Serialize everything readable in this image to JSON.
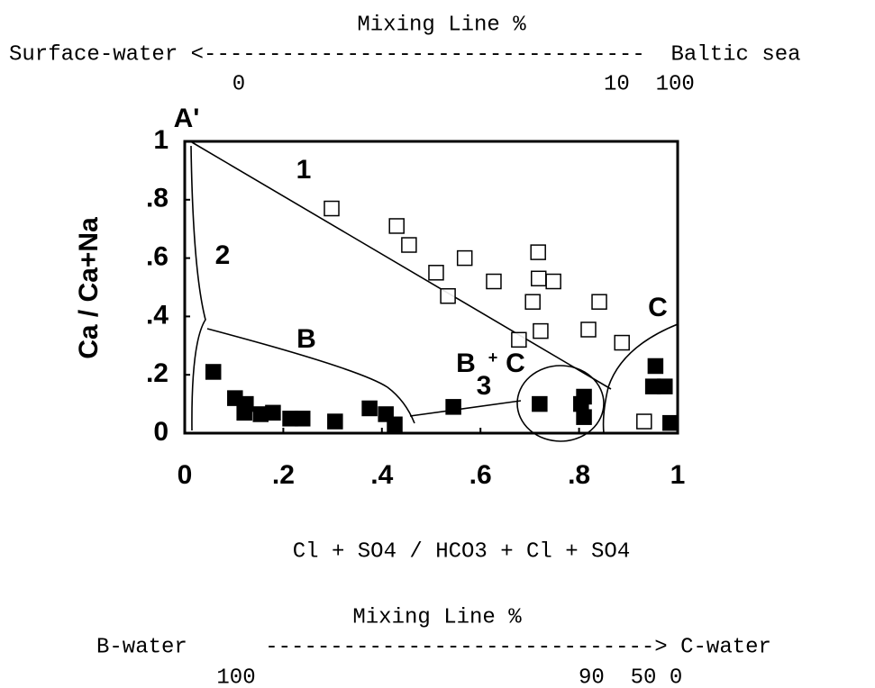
{
  "chart_data": {
    "type": "scatter",
    "xlabel": "Cl + SO4 / HCO3 + Cl + SO4",
    "ylabel": "Ca / Ca+Na",
    "xlim": [
      0,
      1
    ],
    "ylim": [
      0,
      1
    ],
    "xticks": [
      0,
      {
        "value": 0.2,
        "label": ".2"
      },
      {
        "value": 0.4,
        "label": ".4"
      },
      {
        "value": 0.6,
        "label": ".6"
      },
      {
        "value": 0.8,
        "label": ".8"
      },
      1
    ],
    "yticks": [
      0,
      {
        "value": 0.2,
        "label": ".2"
      },
      {
        "value": 0.4,
        "label": ".4"
      },
      {
        "value": 0.6,
        "label": ".6"
      },
      {
        "value": 0.8,
        "label": ".8"
      },
      1
    ],
    "annotations": [
      "Mixing Line %",
      "Surface-water <----------------------------------  Baltic sea",
      "0",
      "10  100",
      "A'",
      "1",
      "2",
      "B",
      "B",
      "3",
      "+",
      "C",
      "C",
      "Mixing Line %",
      "B-water      ------------------------------> C-water",
      "100",
      "90  50 0"
    ],
    "series": [
      {
        "color": "#000000",
        "fill": "none",
        "x": [
          0.298,
          0.43,
          0.455,
          0.51,
          0.568,
          0.534,
          0.627,
          0.717,
          0.718,
          0.748,
          0.706,
          0.678,
          0.722,
          0.819,
          0.841,
          0.887,
          0.932
        ],
        "values": [
          0.77,
          0.71,
          0.645,
          0.55,
          0.6,
          0.47,
          0.52,
          0.62,
          0.53,
          0.52,
          0.45,
          0.32,
          0.35,
          0.355,
          0.45,
          0.31,
          0.04
        ]
      },
      {
        "color": "#000000",
        "fill": "#000000",
        "x": [
          0.058,
          0.102,
          0.124,
          0.121,
          0.154,
          0.179,
          0.214,
          0.239,
          0.305,
          0.375,
          0.408,
          0.426,
          0.545,
          0.72,
          0.81,
          0.804,
          0.81,
          0.955,
          0.95,
          0.974,
          0.985
        ],
        "values": [
          0.21,
          0.12,
          0.1,
          0.07,
          0.065,
          0.07,
          0.05,
          0.05,
          0.04,
          0.085,
          0.065,
          0.03,
          0.09,
          0.1,
          0.125,
          0.1,
          0.055,
          0.23,
          0.16,
          0.16,
          0.035
        ]
      }
    ]
  }
}
